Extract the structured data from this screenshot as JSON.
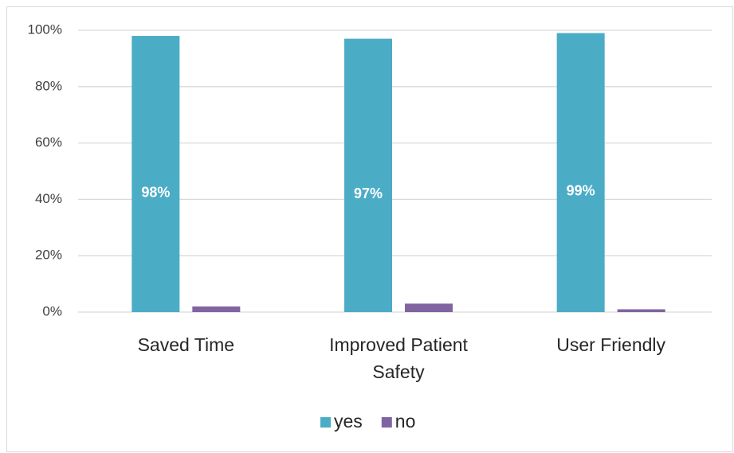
{
  "chart_data": {
    "type": "bar",
    "categories": [
      "Saved Time",
      "Improved Patient Safety",
      "User Friendly"
    ],
    "series": [
      {
        "name": "yes",
        "color": "#4bacc6",
        "values": [
          98,
          97,
          99
        ],
        "value_labels": [
          "98%",
          "97%",
          "99%"
        ]
      },
      {
        "name": "no",
        "color": "#8064a2",
        "values": [
          2,
          3,
          1
        ]
      }
    ],
    "ylim": [
      0,
      100
    ],
    "yticks": [
      {
        "value": 0,
        "label": "0%"
      },
      {
        "value": 20,
        "label": "20%"
      },
      {
        "value": 40,
        "label": "40%"
      },
      {
        "value": 60,
        "label": "60%"
      },
      {
        "value": 80,
        "label": "80%"
      },
      {
        "value": 100,
        "label": "100%"
      }
    ],
    "grid": true,
    "legend": "bottom"
  }
}
